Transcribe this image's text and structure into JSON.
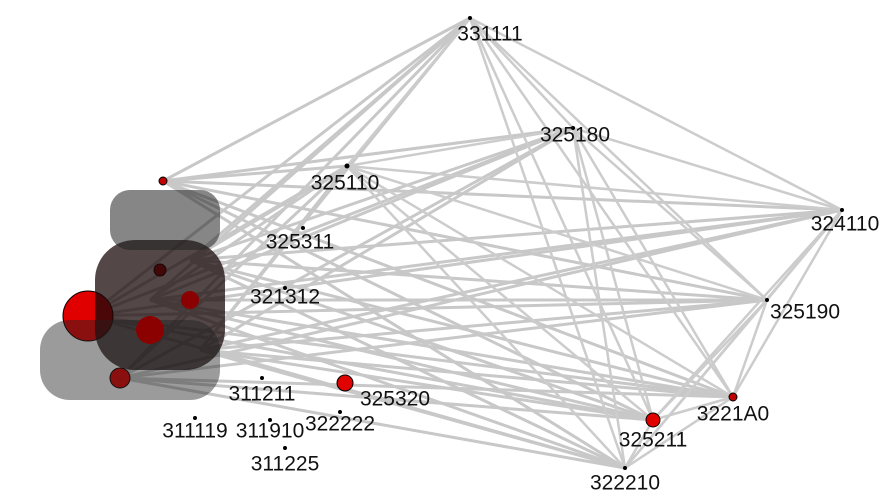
{
  "nodes": [
    {
      "label": "331111"
    },
    {
      "label": "325180"
    },
    {
      "label": "325110"
    },
    {
      "label": "324110"
    },
    {
      "label": "325311"
    },
    {
      "label": "325190"
    },
    {
      "label": "321312"
    },
    {
      "label": "311211"
    },
    {
      "label": "325320"
    },
    {
      "label": "3221A0"
    },
    {
      "label": "325211"
    },
    {
      "label": "322210"
    },
    {
      "label": "311225"
    },
    {
      "label": "311119"
    },
    {
      "label": "311910"
    },
    {
      "label": "322222"
    }
  ]
}
